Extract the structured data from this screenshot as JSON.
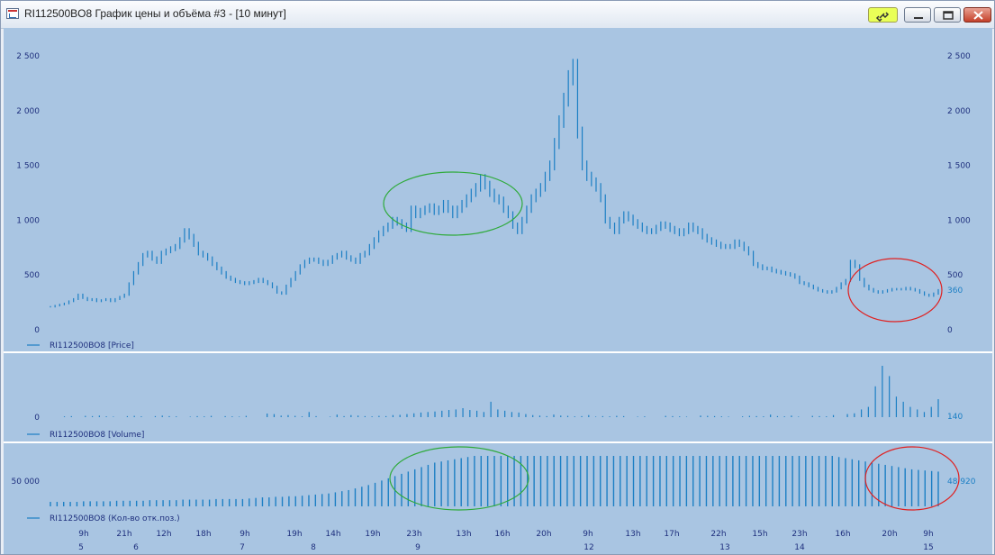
{
  "window": {
    "title": "RI112500BO8 График цены и объёма #3 - [10 минут]"
  },
  "chart_data": {
    "type": "bar",
    "price_panel": {
      "legend": "RI112500BO8 [Price]",
      "yticks": [
        "2 500",
        "2 000",
        "1 500",
        "1 000",
        "500",
        "0"
      ],
      "ytick_values": [
        2500,
        2000,
        1500,
        1000,
        500,
        0
      ],
      "ylim": [
        0,
        2500
      ],
      "last_value": "360",
      "values": [
        210,
        220,
        230,
        240,
        260,
        280,
        320,
        290,
        270,
        280,
        260,
        270,
        280,
        260,
        280,
        300,
        320,
        420,
        520,
        600,
        680,
        700,
        650,
        620,
        700,
        720,
        740,
        760,
        820,
        900,
        850,
        780,
        700,
        680,
        650,
        600,
        560,
        520,
        480,
        460,
        440,
        430,
        420,
        430,
        440,
        460,
        440,
        420,
        390,
        340,
        330,
        400,
        460,
        520,
        580,
        620,
        640,
        640,
        620,
        600,
        620,
        660,
        680,
        700,
        660,
        640,
        620,
        680,
        700,
        760,
        820,
        880,
        920,
        950,
        1000,
        980,
        950,
        920,
        1100,
        1050,
        1080,
        1100,
        1120,
        1080,
        1100,
        1150,
        1100,
        1050,
        1100,
        1150,
        1200,
        1250,
        1300,
        1380,
        1320,
        1250,
        1200,
        1180,
        1100,
        1050,
        950,
        900,
        1000,
        1100,
        1200,
        1250,
        1300,
        1400,
        1500,
        1700,
        1900,
        2100,
        2300,
        2400,
        1800,
        1500,
        1400,
        1350,
        1300,
        1200,
        1000,
        950,
        900,
        1000,
        1050,
        1020,
        980,
        950,
        920,
        900,
        900,
        930,
        960,
        950,
        920,
        900,
        880,
        900,
        950,
        920,
        900,
        850,
        820,
        800,
        780,
        760,
        760,
        760,
        800,
        780,
        740,
        700,
        600,
        580,
        560,
        560,
        540,
        530,
        520,
        510,
        500,
        480,
        430,
        420,
        400,
        380,
        360,
        350,
        340,
        350,
        380,
        420,
        450,
        620,
        580,
        460,
        400,
        370,
        350,
        340,
        350,
        360,
        370,
        370,
        370,
        380,
        370,
        360,
        340,
        320,
        310,
        330,
        360
      ]
    },
    "volume_panel": {
      "legend": "RI112500BO8 [Volume]",
      "ytick": "0",
      "last_value": "140",
      "values": [
        0,
        0,
        3,
        4,
        0,
        5,
        4,
        6,
        3,
        2,
        0,
        4,
        5,
        3,
        0,
        4,
        6,
        4,
        3,
        0,
        2,
        4,
        3,
        5,
        0,
        4,
        3,
        2,
        5,
        0,
        0,
        14,
        12,
        6,
        8,
        5,
        3,
        20,
        4,
        0,
        2,
        10,
        4,
        8,
        6,
        4,
        3,
        5,
        4,
        8,
        9,
        12,
        15,
        18,
        20,
        22,
        25,
        28,
        30,
        35,
        28,
        25,
        20,
        60,
        30,
        25,
        20,
        18,
        12,
        8,
        6,
        4,
        10,
        6,
        5,
        3,
        4,
        8,
        2,
        4,
        3,
        5,
        4,
        0,
        2,
        3,
        0,
        0,
        5,
        4,
        3,
        2,
        0,
        6,
        5,
        4,
        3,
        2,
        0,
        3,
        5,
        4,
        3,
        10,
        4,
        3,
        6,
        2,
        0,
        5,
        4,
        3,
        8,
        0,
        12,
        15,
        30,
        40,
        120,
        200,
        160,
        80,
        60,
        40,
        30,
        20,
        40,
        70
      ]
    },
    "oi_panel": {
      "legend": "RI112500BO8 (Кол-во отк.поз.)",
      "ytick": "50 000",
      "last_value": "48 920",
      "values": [
        8,
        8,
        8,
        8,
        8,
        9,
        9,
        9,
        9,
        9,
        10,
        10,
        10,
        10,
        10,
        11,
        11,
        11,
        11,
        11,
        12,
        12,
        12,
        12,
        12,
        13,
        13,
        13,
        13,
        13,
        14,
        15,
        16,
        16,
        17,
        17,
        18,
        18,
        19,
        20,
        21,
        22,
        23,
        25,
        27,
        29,
        32,
        35,
        38,
        42,
        46,
        50,
        54,
        58,
        62,
        66,
        70,
        74,
        78,
        80,
        82,
        84,
        86,
        88,
        90,
        90,
        90,
        90,
        90,
        90,
        90,
        90,
        90,
        90,
        90,
        90,
        90,
        90,
        90,
        90,
        90,
        90,
        90,
        90,
        90,
        90,
        90,
        90,
        90,
        90,
        90,
        90,
        90,
        90,
        90,
        90,
        90,
        90,
        90,
        90,
        90,
        90,
        90,
        90,
        90,
        90,
        90,
        90,
        90,
        90,
        90,
        90,
        90,
        90,
        90,
        90,
        90,
        90,
        90,
        88,
        86,
        84,
        82,
        80,
        78,
        76,
        74,
        72,
        70,
        68,
        66,
        65,
        64,
        63,
        62
      ]
    },
    "x_time_labels": [
      "9h",
      "21h",
      "12h",
      "18h",
      "9h",
      "19h",
      "14h",
      "19h",
      "23h",
      "13h",
      "16h",
      "20h",
      "9h",
      "13h",
      "17h",
      "22h",
      "15h",
      "23h",
      "16h",
      "20h",
      "9h"
    ],
    "x_date_labels": [
      "5",
      "6",
      "7",
      "8",
      "9",
      "12",
      "13",
      "14",
      "15"
    ],
    "annotations": [
      {
        "shape": "ellipse",
        "color": "#2eaa3a"
      },
      {
        "shape": "ellipse",
        "color": "#e02020"
      }
    ],
    "colors": {
      "background": "#a9c5e2",
      "series": "#1c7fc4",
      "text": "#1e2f7d",
      "separator": "#ffffff"
    }
  }
}
